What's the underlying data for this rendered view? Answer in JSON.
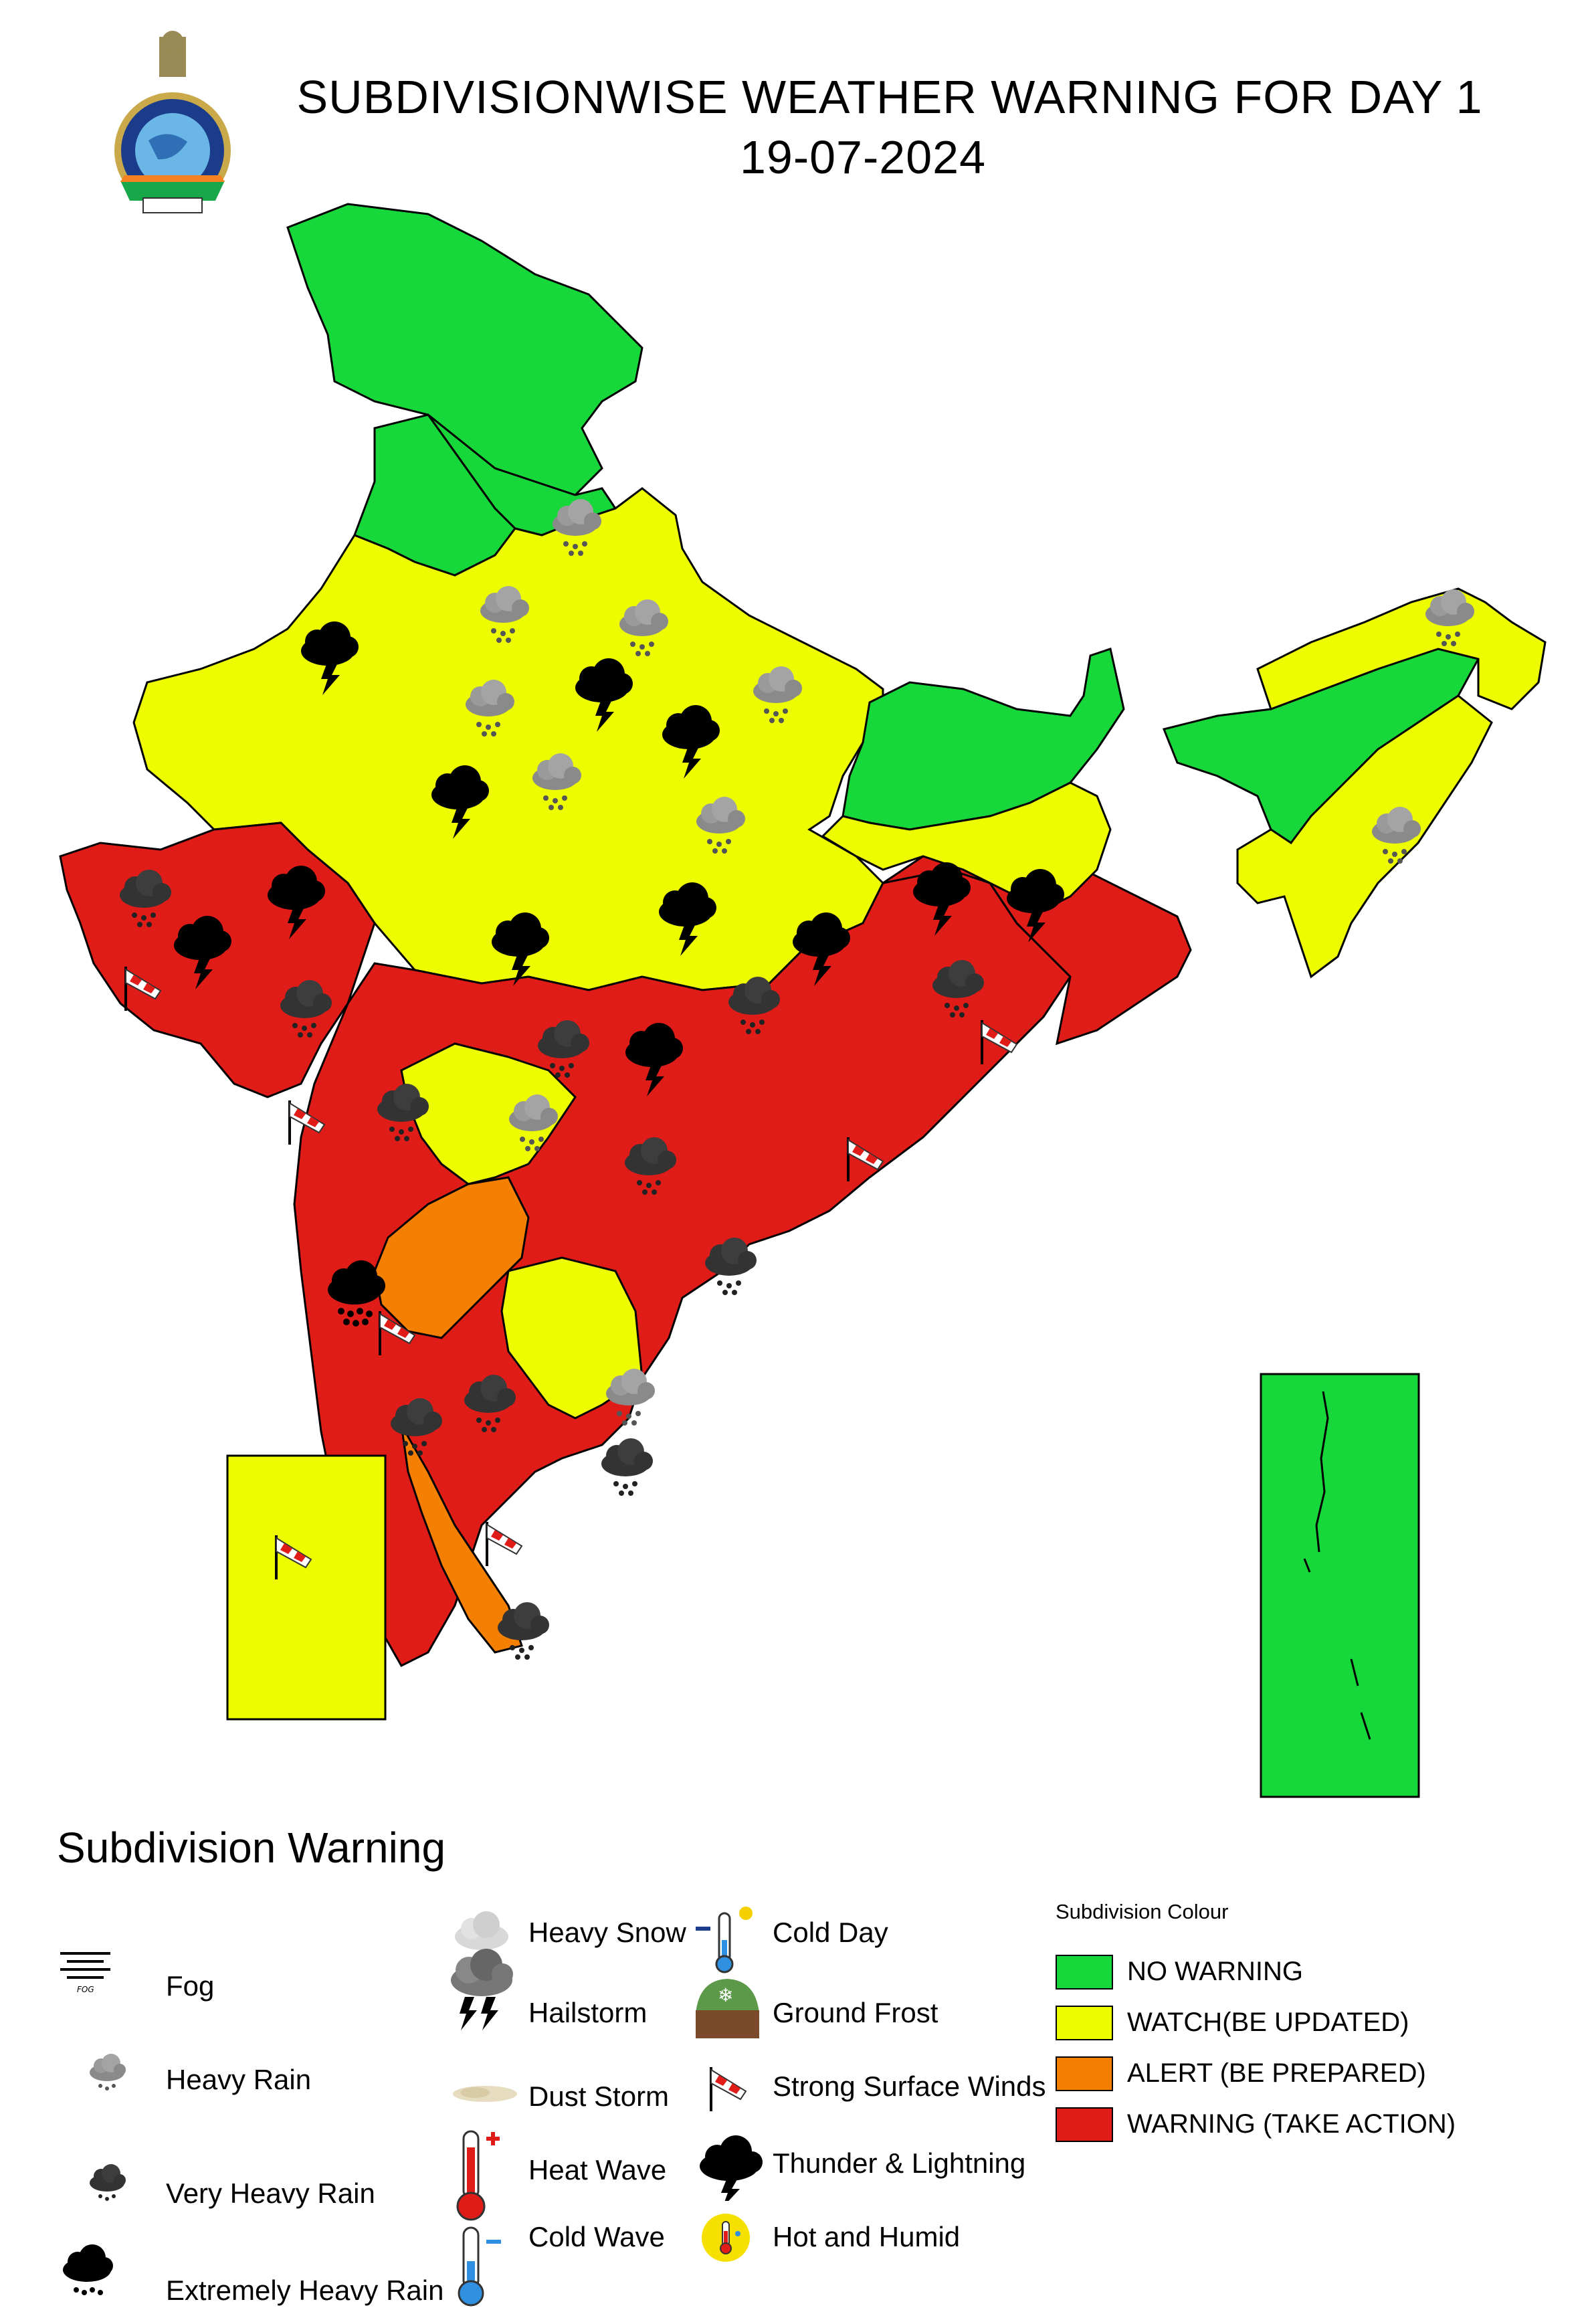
{
  "header": {
    "title": "SUBDIVISIONWISE WEATHER WARNING FOR DAY 1",
    "date": "19-07-2024"
  },
  "colors": {
    "no_warning": "#17d83a",
    "watch": "#eefc00",
    "alert": "#f57f00",
    "warning": "#e01c18"
  },
  "legend": {
    "title": "Subdivision Warning",
    "icons": [
      {
        "label": "Fog",
        "icon": "fog-icon"
      },
      {
        "label": "Heavy Rain",
        "icon": "heavy-rain-icon"
      },
      {
        "label": "Very Heavy Rain",
        "icon": "very-heavy-rain-icon"
      },
      {
        "label": "Extremely Heavy Rain",
        "icon": "extremely-heavy-rain-icon"
      },
      {
        "label": "Heavy Snow",
        "icon": "heavy-snow-icon"
      },
      {
        "label": "Hailstorm",
        "icon": "hailstorm-icon"
      },
      {
        "label": "Dust Storm",
        "icon": "dust-storm-icon"
      },
      {
        "label": "Heat Wave",
        "icon": "heat-wave-icon"
      },
      {
        "label": "Cold Wave",
        "icon": "cold-wave-icon"
      },
      {
        "label": "Cold Day",
        "icon": "cold-day-icon"
      },
      {
        "label": "Ground Frost",
        "icon": "ground-frost-icon"
      },
      {
        "label": "Strong Surface Winds",
        "icon": "windsock-icon"
      },
      {
        "label": "Thunder & Lightning",
        "icon": "thunder-lightning-icon"
      },
      {
        "label": "Hot and Humid",
        "icon": "hot-humid-icon"
      }
    ],
    "colour_title": "Subdivision Colour",
    "colours": [
      {
        "label": "NO WARNING",
        "color": "#17d83a"
      },
      {
        "label": "WATCH(BE UPDATED)",
        "color": "#eefc00"
      },
      {
        "label": "ALERT (BE PREPARED)",
        "color": "#f57f00"
      },
      {
        "label": "WARNING (TAKE ACTION)",
        "color": "#e01c18"
      }
    ]
  }
}
